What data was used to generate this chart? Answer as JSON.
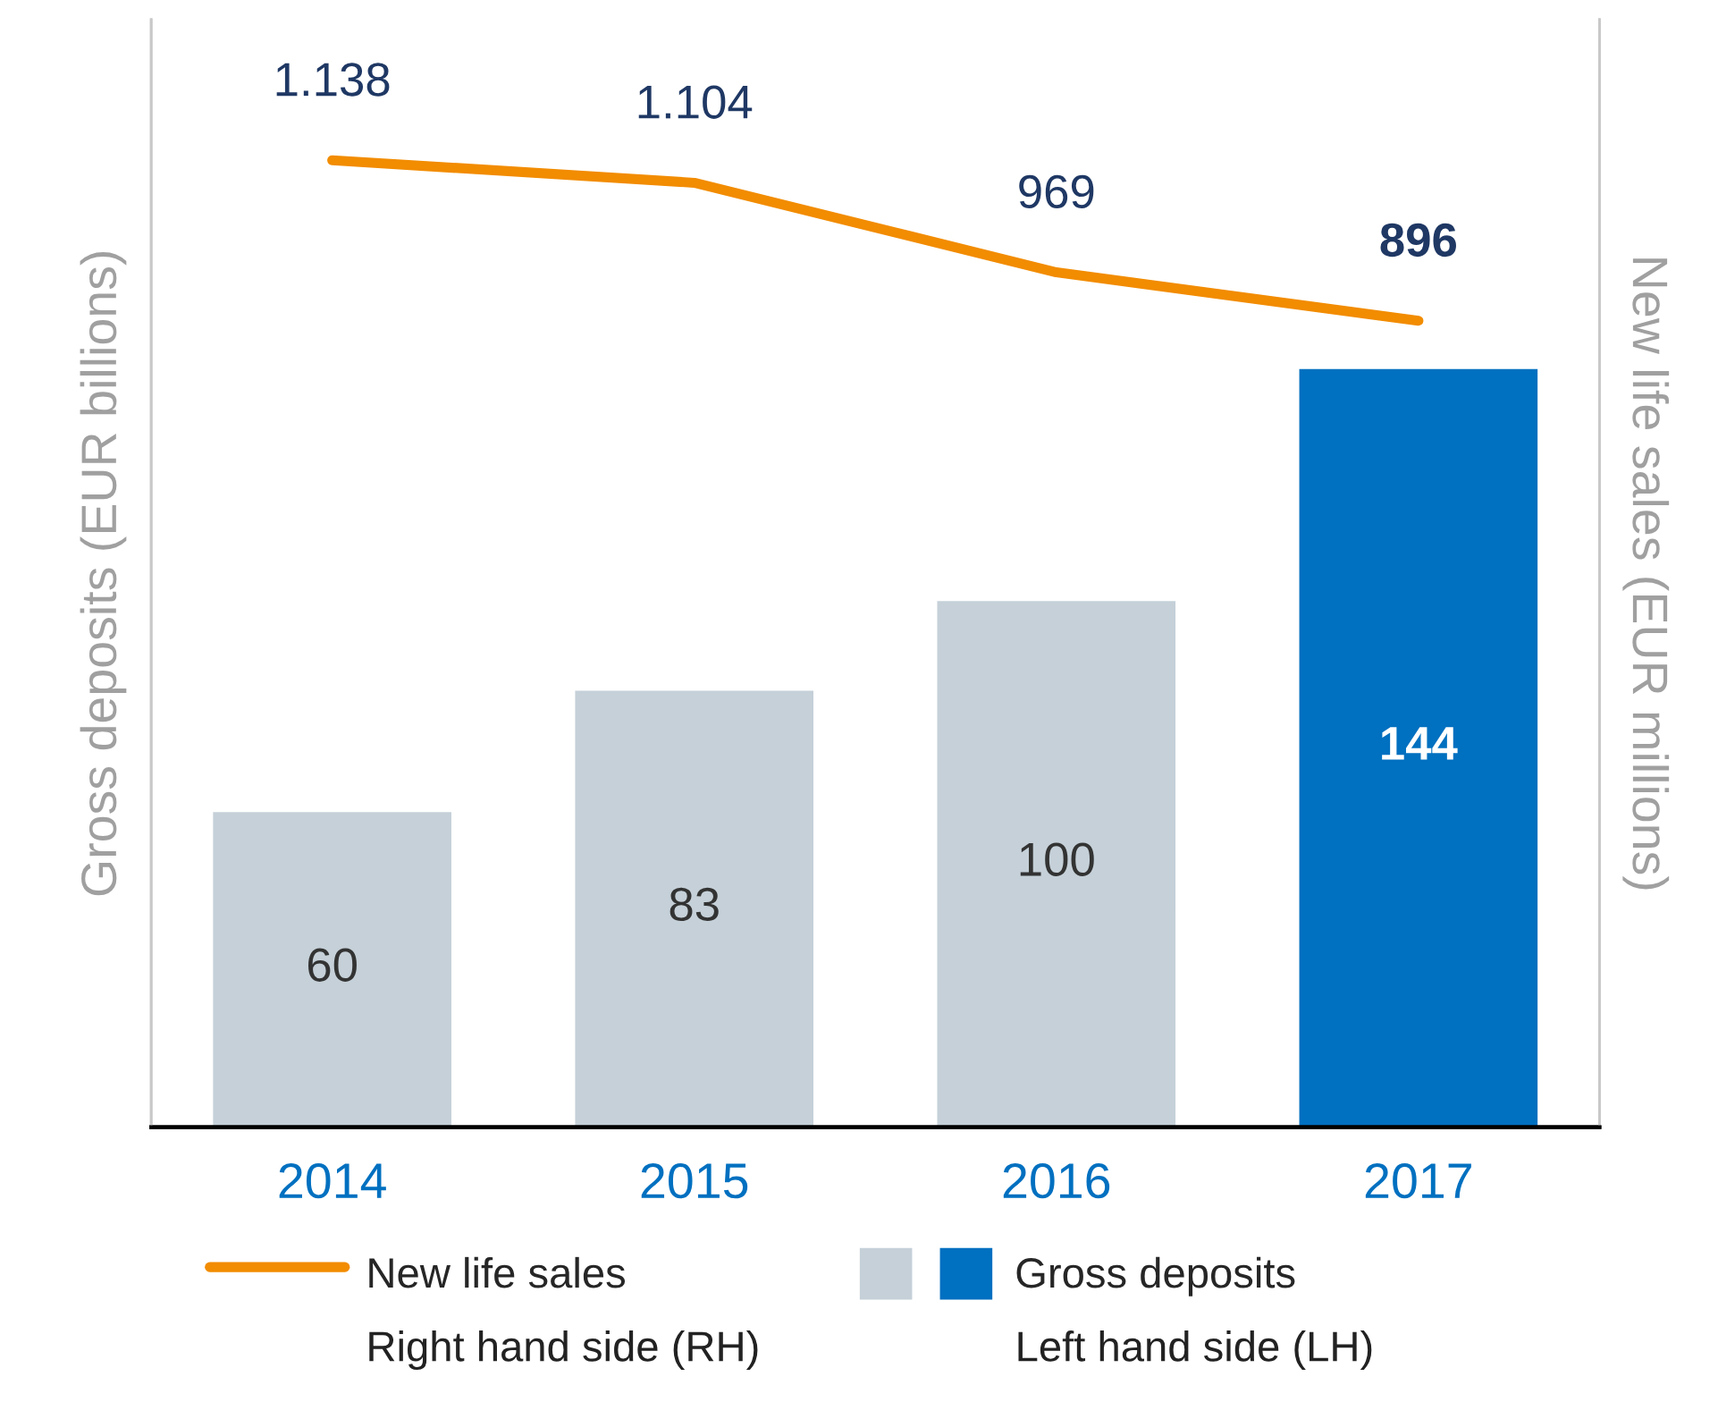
{
  "chart_data": {
    "type": "bar",
    "ylabel": "Gross deposits (EUR billions)",
    "y2label": "New life sales (EUR millions)",
    "categories": [
      "2014",
      "2015",
      "2016",
      "2017"
    ],
    "series": [
      {
        "name": "Gross deposits",
        "colors": [
          "#c5d0d8",
          "#c5d0d8",
          "#c5d0d8",
          "#0070c0"
        ],
        "values": [
          60,
          83,
          100,
          144
        ],
        "data_labels": true
      },
      {
        "name": "New life sales",
        "type": "line",
        "axis": "y2",
        "color": "#f28c00",
        "values": [
          1138,
          1104,
          969,
          896
        ],
        "value_labels": [
          "1.138",
          "1.104",
          "969",
          "896"
        ]
      }
    ],
    "ylim": [
      0,
      210
    ],
    "y2lim": [
      -320,
      1350
    ],
    "tick_labels": "x",
    "grid": false,
    "legend": "bottom",
    "marker": "none",
    "annotations": [
      "Right hand side (RH)",
      "Left hand side (LH)"
    ]
  }
}
